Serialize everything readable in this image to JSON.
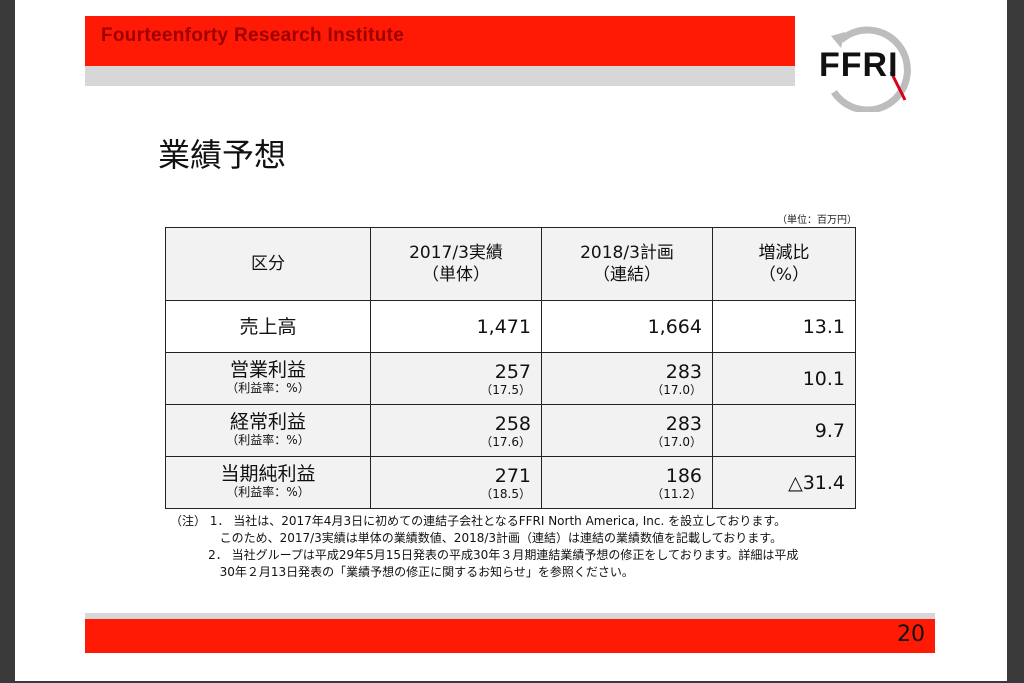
{
  "header": {
    "company": "Fourteenforty Research Institute",
    "logo_text": "FFRI"
  },
  "title": "業績予想",
  "unit_note": "（単位：百万円）",
  "table": {
    "headers": {
      "category": "区分",
      "actual_line1": "2017/3実績",
      "actual_line2": "（単体）",
      "plan_line1": "2018/3計画",
      "plan_line2": "（連結）",
      "change_line1": "増減比",
      "change_line2": "（%）"
    },
    "rows": [
      {
        "label": "売上高",
        "sub": "",
        "actual": "1,471",
        "actual_margin": "",
        "plan": "1,664",
        "plan_margin": "",
        "change": "13.1"
      },
      {
        "label": "営業利益",
        "sub": "（利益率：%）",
        "actual": "257",
        "actual_margin": "（17.5）",
        "plan": "283",
        "plan_margin": "（17.0）",
        "change": "10.1"
      },
      {
        "label": "経常利益",
        "sub": "（利益率：%）",
        "actual": "258",
        "actual_margin": "（17.6）",
        "plan": "283",
        "plan_margin": "（17.0）",
        "change": "9.7"
      },
      {
        "label": "当期純利益",
        "sub": "（利益率：%）",
        "actual": "271",
        "actual_margin": "（18.5）",
        "plan": "186",
        "plan_margin": "（11.2）",
        "change": "△31.4"
      }
    ]
  },
  "notes": {
    "line1": "（注） 1． 当社は、2017年4月3日に初めての連結子会社となるFFRI North America, Inc. を設立しております。",
    "line2": "             このため、2017/3実績は単体の業績数値、2018/3計画（連結）は連結の業績数値を記載しております。",
    "line3": "          2． 当社グループは平成29年5月15日発表の平成30年３月期連結業績予想の修正をしております。詳細は平成",
    "line4": "             30年２月13日発表の「業績予想の修正に関するお知らせ」を参照ください。"
  },
  "footer": {
    "page_number": "20"
  },
  "colors": {
    "accent_red": "#ff1a05",
    "company_text": "#9e0000",
    "band_gray": "#d7d7d7"
  }
}
